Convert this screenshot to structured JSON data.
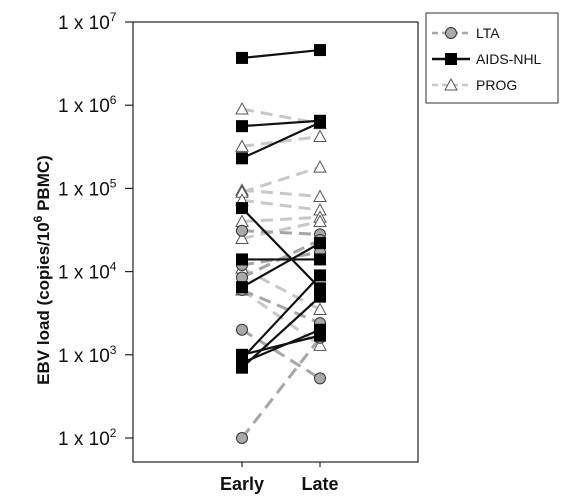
{
  "chart_data": {
    "type": "line",
    "scale": "log",
    "categories": [
      "Early",
      "Late"
    ],
    "ylabel": "EBV load (copies/10^6 PBMC)",
    "ylabel_parts": {
      "before": "EBV load (copies/10",
      "sup": "6",
      "after": " PBMC)"
    },
    "ylim": [
      100,
      10000000
    ],
    "yticks": [
      {
        "base": "1 x 10",
        "exp": "2",
        "value": 100
      },
      {
        "base": "1 x 10",
        "exp": "3",
        "value": 1000
      },
      {
        "base": "1 x 10",
        "exp": "4",
        "value": 10000
      },
      {
        "base": "1 x 10",
        "exp": "5",
        "value": 100000
      },
      {
        "base": "1 x 10",
        "exp": "6",
        "value": 1000000
      },
      {
        "base": "1 x 10",
        "exp": "7",
        "value": 10000000
      }
    ],
    "legend_position": "top-right",
    "series": [
      {
        "name": "LTA",
        "marker": "circle",
        "color": "#a6a6a6",
        "line_style": "dashed",
        "pairs": [
          [
            100,
            1600
          ],
          [
            2000,
            520
          ],
          [
            31000,
            28000
          ],
          [
            8500,
            24000
          ],
          [
            12000,
            17000
          ],
          [
            6000,
            2400
          ]
        ]
      },
      {
        "name": "AIDS-NHL",
        "marker": "square",
        "color": "#111111",
        "line_style": "solid",
        "pairs": [
          [
            3700000,
            4600000
          ],
          [
            560000,
            650000
          ],
          [
            230000,
            620000
          ],
          [
            58000,
            6300
          ],
          [
            14000,
            14000
          ],
          [
            6500,
            22000
          ],
          [
            900,
            9000
          ],
          [
            700,
            5000
          ],
          [
            800,
            2000
          ],
          [
            1000,
            1700
          ]
        ]
      },
      {
        "name": "PROG",
        "marker": "triangle",
        "color": "#c8c8c8",
        "line_style": "dashed",
        "pairs": [
          [
            900000,
            600000
          ],
          [
            320000,
            420000
          ],
          [
            95000,
            80000
          ],
          [
            90000,
            180000
          ],
          [
            72000,
            55000
          ],
          [
            40000,
            45000
          ],
          [
            25000,
            40000
          ],
          [
            11000,
            3500
          ],
          [
            6000,
            1300
          ]
        ]
      }
    ]
  }
}
